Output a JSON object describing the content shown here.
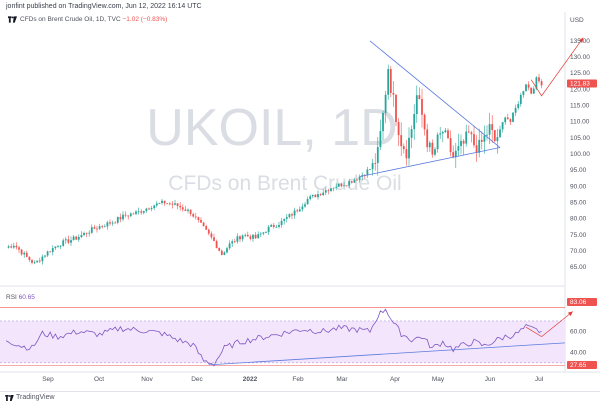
{
  "header": {
    "text": "jonfint published on TradingView.com, Jun 12, 2022 16:14 UTC"
  },
  "symbol": {
    "name": "CFDs on Brent Crude Oil, 1D, TVC",
    "change": "−1.02 (−0.83%)"
  },
  "watermark": {
    "ticker": "UKOIL, 1D",
    "description": "CFDs on Brent Crude Oil"
  },
  "price_axis": {
    "currency": "USD",
    "ticks": [
      "135.00",
      "130.00",
      "125.00",
      "120.00",
      "115.00",
      "110.00",
      "105.00",
      "100.00",
      "95.00",
      "90.00",
      "85.00",
      "80.00",
      "75.00",
      "70.00",
      "65.00"
    ],
    "tick_values": [
      135,
      130,
      125,
      120,
      115,
      110,
      105,
      100,
      95,
      90,
      85,
      80,
      75,
      70,
      65
    ],
    "last_price": "121.83"
  },
  "rsi": {
    "label": "RSI",
    "value": "60.65",
    "ticks": [
      "60.00",
      "40.00"
    ],
    "tick_values": [
      60,
      40
    ],
    "upper_mark": "83.06",
    "lower_mark": "27.65"
  },
  "time_axis": {
    "labels": [
      "Sep",
      "Oct",
      "Nov",
      "Dec",
      "2022",
      "Feb",
      "Mar",
      "Apr",
      "May",
      "Jun",
      "Jul"
    ]
  },
  "footer": {
    "brand": "TradingView"
  },
  "colors": {
    "up": "#26a69a",
    "down": "#ef5350",
    "trendline": "#5b7be0",
    "arrow": "#e53935",
    "rsi_line": "#7e57c2",
    "rsi_band": "#f3e5fb"
  },
  "icons": {
    "logo": "tradingview-logo-icon",
    "symbol": "tradingview-logo-icon"
  },
  "chart_data": {
    "type": "candlestick",
    "series_key": "UKOIL 1D",
    "x_labels": [
      "Sep",
      "Oct",
      "Nov",
      "Dec",
      "2022",
      "Feb",
      "Mar",
      "Apr",
      "May",
      "Jun",
      "Jul"
    ],
    "ylim": [
      61,
      139
    ],
    "close_anchors": [
      [
        0,
        71
      ],
      [
        3,
        72
      ],
      [
        8,
        68
      ],
      [
        11,
        66
      ],
      [
        15,
        69
      ],
      [
        20,
        72
      ],
      [
        27,
        74
      ],
      [
        34,
        77
      ],
      [
        41,
        79
      ],
      [
        46,
        81
      ],
      [
        51,
        82
      ],
      [
        56,
        84
      ],
      [
        61,
        85
      ],
      [
        66,
        84
      ],
      [
        71,
        82
      ],
      [
        75,
        78
      ],
      [
        80,
        73
      ],
      [
        83,
        69
      ],
      [
        86,
        72
      ],
      [
        91,
        75
      ],
      [
        96,
        74
      ],
      [
        101,
        77
      ],
      [
        106,
        79
      ],
      [
        111,
        82
      ],
      [
        116,
        86
      ],
      [
        121,
        88
      ],
      [
        126,
        90
      ],
      [
        131,
        91
      ],
      [
        136,
        93
      ],
      [
        141,
        96
      ],
      [
        143,
        100
      ],
      [
        145,
        112
      ],
      [
        147,
        127
      ],
      [
        148,
        121
      ],
      [
        150,
        112
      ],
      [
        152,
        104
      ],
      [
        154,
        101
      ],
      [
        156,
        108
      ],
      [
        158,
        118
      ],
      [
        160,
        112
      ],
      [
        162,
        104
      ],
      [
        164,
        99
      ],
      [
        166,
        104
      ],
      [
        168,
        107
      ],
      [
        170,
        103
      ],
      [
        172,
        99
      ],
      [
        174,
        101
      ],
      [
        176,
        103
      ],
      [
        178,
        106
      ],
      [
        180,
        103
      ],
      [
        182,
        102
      ],
      [
        184,
        105
      ],
      [
        186,
        108
      ],
      [
        188,
        104
      ],
      [
        190,
        107
      ],
      [
        192,
        112
      ],
      [
        194,
        110
      ],
      [
        196,
        114
      ],
      [
        198,
        118
      ],
      [
        200,
        122
      ],
      [
        202,
        119
      ],
      [
        204,
        123
      ],
      [
        206,
        122
      ]
    ],
    "annotations": [
      {
        "type": "triangle",
        "from": [
          140,
          135
        ],
        "to": [
          190,
          102
        ],
        "note": "symmetrical triangle upper edge"
      },
      {
        "type": "triangle",
        "from": [
          136,
          93
        ],
        "to": [
          190,
          102
        ],
        "note": "triangle lower edge"
      },
      {
        "type": "arrow",
        "points": [
          [
            202,
            123
          ],
          [
            206,
            118
          ],
          [
            222,
            136
          ]
        ]
      }
    ],
    "rsi_ylim": [
      25,
      90
    ],
    "rsi_levels": [
      70,
      30
    ],
    "rsi_anchors": [
      [
        0,
        52
      ],
      [
        6,
        46
      ],
      [
        10,
        44
      ],
      [
        14,
        58
      ],
      [
        20,
        55
      ],
      [
        28,
        60
      ],
      [
        36,
        57
      ],
      [
        44,
        63
      ],
      [
        52,
        61
      ],
      [
        60,
        58
      ],
      [
        66,
        52
      ],
      [
        72,
        47
      ],
      [
        76,
        32
      ],
      [
        80,
        29
      ],
      [
        84,
        44
      ],
      [
        90,
        50
      ],
      [
        98,
        54
      ],
      [
        106,
        58
      ],
      [
        114,
        62
      ],
      [
        122,
        60
      ],
      [
        128,
        63
      ],
      [
        134,
        62
      ],
      [
        140,
        60
      ],
      [
        143,
        75
      ],
      [
        146,
        82
      ],
      [
        149,
        68
      ],
      [
        152,
        58
      ],
      [
        156,
        52
      ],
      [
        160,
        55
      ],
      [
        164,
        44
      ],
      [
        168,
        50
      ],
      [
        172,
        43
      ],
      [
        176,
        47
      ],
      [
        180,
        50
      ],
      [
        184,
        46
      ],
      [
        188,
        51
      ],
      [
        192,
        55
      ],
      [
        196,
        57
      ],
      [
        200,
        64
      ],
      [
        204,
        61
      ],
      [
        206,
        60
      ]
    ]
  }
}
